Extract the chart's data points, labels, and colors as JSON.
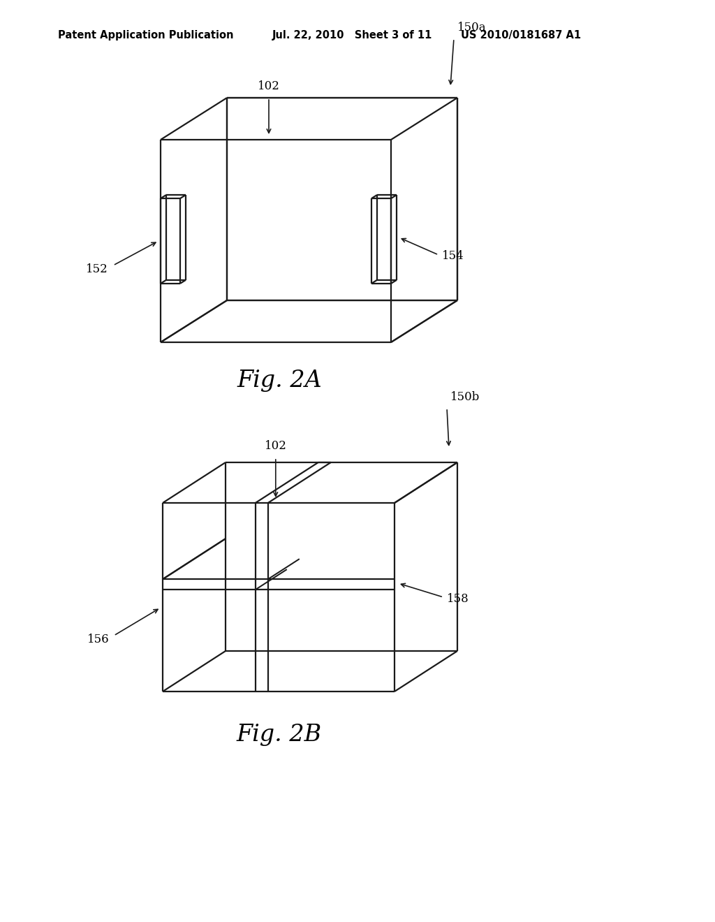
{
  "background_color": "#ffffff",
  "header_left": "Patent Application Publication",
  "header_center": "Jul. 22, 2010   Sheet 3 of 11",
  "header_right": "US 2010/0181687 A1",
  "header_fontsize": 10.5,
  "fig2a_label": "Fig. 2A",
  "fig2b_label": "Fig. 2B",
  "label_102a": "102",
  "label_150a": "150a",
  "label_152": "152",
  "label_154": "154",
  "label_102b": "102",
  "label_150b": "150b",
  "label_156": "156",
  "label_158": "158",
  "line_color": "#1a1a1a",
  "line_width": 1.6,
  "fig_label_fontsize": 24,
  "annot_fontsize": 12
}
